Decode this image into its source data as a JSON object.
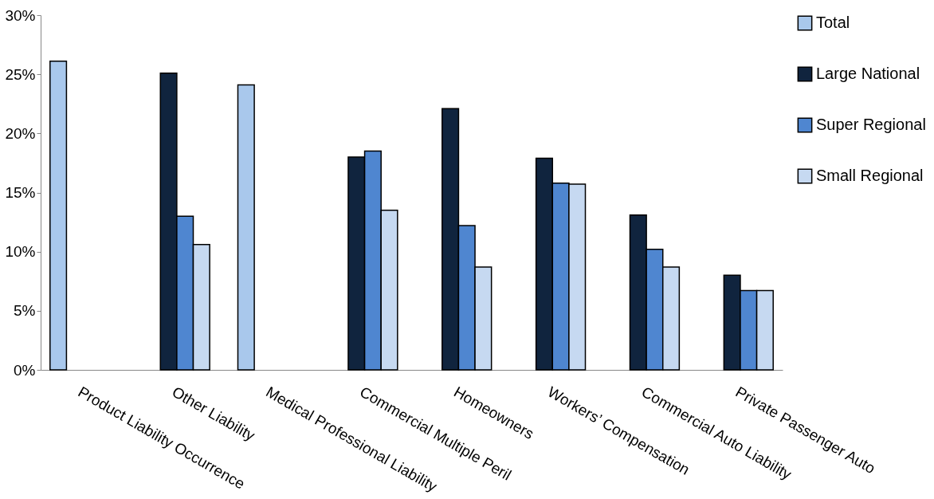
{
  "chart_data": {
    "type": "bar",
    "categories": [
      "Product Liability Occurrence",
      "Other Liability",
      "Medical Professional Liability",
      "Commercial Multiple Peril",
      "Homeowners",
      "Workers’ Compensation",
      "Commercial Auto Liability",
      "Private Passenger Auto"
    ],
    "series": [
      {
        "name": "Total",
        "color": "#a9c8ec",
        "values": [
          26.1,
          null,
          24.1,
          null,
          null,
          null,
          null,
          null
        ]
      },
      {
        "name": "Large National",
        "color": "#10243e",
        "values": [
          null,
          25.1,
          null,
          18.0,
          22.1,
          17.9,
          13.1,
          8.0
        ]
      },
      {
        "name": "Super Regional",
        "color": "#4f86d0",
        "values": [
          null,
          13.0,
          null,
          18.5,
          12.2,
          15.8,
          10.2,
          6.7
        ]
      },
      {
        "name": "Small Regional",
        "color": "#c6d9f1",
        "values": [
          null,
          10.6,
          null,
          13.5,
          8.7,
          15.7,
          8.7,
          6.7
        ]
      }
    ],
    "ylim": [
      0,
      30
    ],
    "yticks": [
      {
        "value": 0,
        "label": "0%"
      },
      {
        "value": 5,
        "label": "5%"
      },
      {
        "value": 10,
        "label": "10%"
      },
      {
        "value": 15,
        "label": "15%"
      },
      {
        "value": 20,
        "label": "20%"
      },
      {
        "value": 25,
        "label": "25%"
      },
      {
        "value": 30,
        "label": "30%"
      }
    ],
    "grid": false,
    "legend": "right"
  }
}
